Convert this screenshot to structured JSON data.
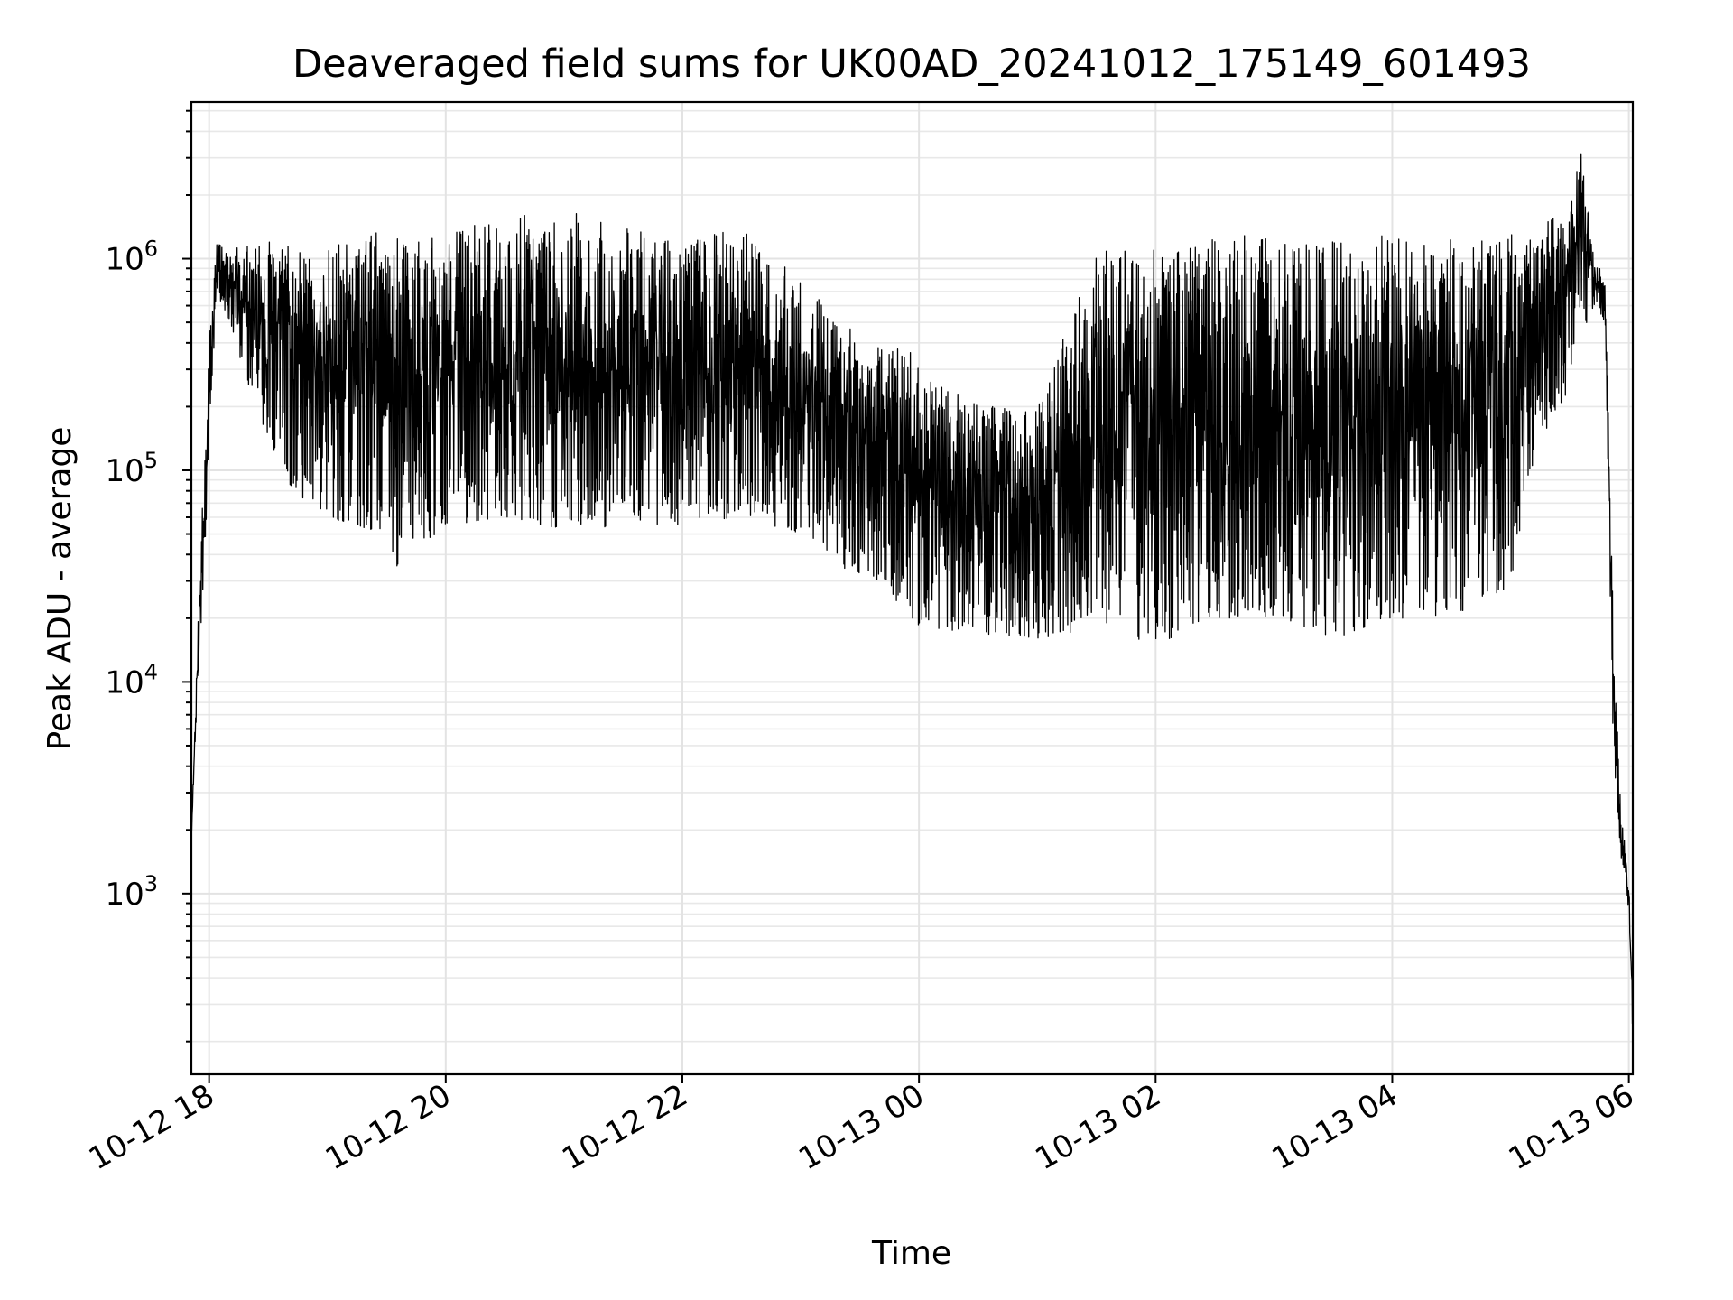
{
  "chart_data": {
    "type": "line",
    "title": "Deaveraged field sums for UK00AD_20241012_175149_601493",
    "xlabel": "Time",
    "ylabel": "Peak ADU - average",
    "yscale": "log",
    "grid": true,
    "line_color": "#000000",
    "xlim": [
      "2024-10-12 17:51",
      "2024-10-13 06:02"
    ],
    "ylim": [
      140,
      5500000
    ],
    "x_ticks": [
      {
        "value": "2024-10-12 18:00",
        "label": "10-12 18"
      },
      {
        "value": "2024-10-12 20:00",
        "label": "10-12 20"
      },
      {
        "value": "2024-10-12 22:00",
        "label": "10-12 22"
      },
      {
        "value": "2024-10-13 00:00",
        "label": "10-13 00"
      },
      {
        "value": "2024-10-13 02:00",
        "label": "10-13 02"
      },
      {
        "value": "2024-10-13 04:00",
        "label": "10-13 04"
      },
      {
        "value": "2024-10-13 06:00",
        "label": "10-13 06"
      }
    ],
    "y_ticks": [
      {
        "value": 1000,
        "base": "10",
        "exp": "3"
      },
      {
        "value": 10000,
        "base": "10",
        "exp": "4"
      },
      {
        "value": 100000,
        "base": "10",
        "exp": "5"
      },
      {
        "value": 1000000,
        "base": "10",
        "exp": "6"
      }
    ],
    "envelope": [
      {
        "x": "2024-10-12 17:51",
        "low": 1800,
        "high": 1800
      },
      {
        "x": "2024-10-12 17:54",
        "low": 9000,
        "high": 15000
      },
      {
        "x": "2024-10-12 17:57",
        "low": 20000,
        "high": 90000
      },
      {
        "x": "2024-10-12 18:00",
        "low": 150000,
        "high": 400000
      },
      {
        "x": "2024-10-12 18:04",
        "low": 700000,
        "high": 1250000
      },
      {
        "x": "2024-10-12 18:10",
        "low": 500000,
        "high": 1100000
      },
      {
        "x": "2024-10-12 18:20",
        "low": 250000,
        "high": 1200000
      },
      {
        "x": "2024-10-12 18:40",
        "low": 80000,
        "high": 1200000
      },
      {
        "x": "2024-10-12 19:00",
        "low": 60000,
        "high": 1100000
      },
      {
        "x": "2024-10-12 19:30",
        "low": 50000,
        "high": 1500000
      },
      {
        "x": "2024-10-12 19:35",
        "low": 35000,
        "high": 1300000
      },
      {
        "x": "2024-10-12 20:00",
        "low": 55000,
        "high": 1300000
      },
      {
        "x": "2024-10-12 20:30",
        "low": 60000,
        "high": 1600000
      },
      {
        "x": "2024-10-12 21:00",
        "low": 50000,
        "high": 1700000
      },
      {
        "x": "2024-10-12 21:30",
        "low": 55000,
        "high": 1400000
      },
      {
        "x": "2024-10-12 22:00",
        "low": 55000,
        "high": 1200000
      },
      {
        "x": "2024-10-12 22:30",
        "low": 60000,
        "high": 1400000
      },
      {
        "x": "2024-10-12 23:00",
        "low": 50000,
        "high": 800000
      },
      {
        "x": "2024-10-12 23:20",
        "low": 35000,
        "high": 500000
      },
      {
        "x": "2024-10-12 23:40",
        "low": 30000,
        "high": 400000
      },
      {
        "x": "2024-10-13 00:00",
        "low": 18000,
        "high": 350000
      },
      {
        "x": "2024-10-13 00:30",
        "low": 17000,
        "high": 200000
      },
      {
        "x": "2024-10-13 01:00",
        "low": 16000,
        "high": 200000
      },
      {
        "x": "2024-10-13 01:30",
        "low": 18000,
        "high": 1100000
      },
      {
        "x": "2024-10-13 02:00",
        "low": 15000,
        "high": 1100000
      },
      {
        "x": "2024-10-13 02:30",
        "low": 20000,
        "high": 1300000
      },
      {
        "x": "2024-10-13 03:00",
        "low": 20000,
        "high": 1300000
      },
      {
        "x": "2024-10-13 03:30",
        "low": 16000,
        "high": 1200000
      },
      {
        "x": "2024-10-13 04:00",
        "low": 20000,
        "high": 1300000
      },
      {
        "x": "2024-10-13 04:30",
        "low": 20000,
        "high": 1400000
      },
      {
        "x": "2024-10-13 05:00",
        "low": 28000,
        "high": 1300000
      },
      {
        "x": "2024-10-13 05:10",
        "low": 100000,
        "high": 1400000
      },
      {
        "x": "2024-10-13 05:30",
        "low": 250000,
        "high": 1800000
      },
      {
        "x": "2024-10-13 05:36",
        "low": 400000,
        "high": 3300000
      },
      {
        "x": "2024-10-13 05:42",
        "low": 600000,
        "high": 1100000
      },
      {
        "x": "2024-10-13 05:48",
        "low": 500000,
        "high": 900000
      },
      {
        "x": "2024-10-13 05:52",
        "low": 5000,
        "high": 20000
      },
      {
        "x": "2024-10-13 05:56",
        "low": 1500,
        "high": 2500
      },
      {
        "x": "2024-10-13 06:00",
        "low": 800,
        "high": 1200
      },
      {
        "x": "2024-10-13 06:02",
        "low": 180,
        "high": 300
      }
    ]
  }
}
